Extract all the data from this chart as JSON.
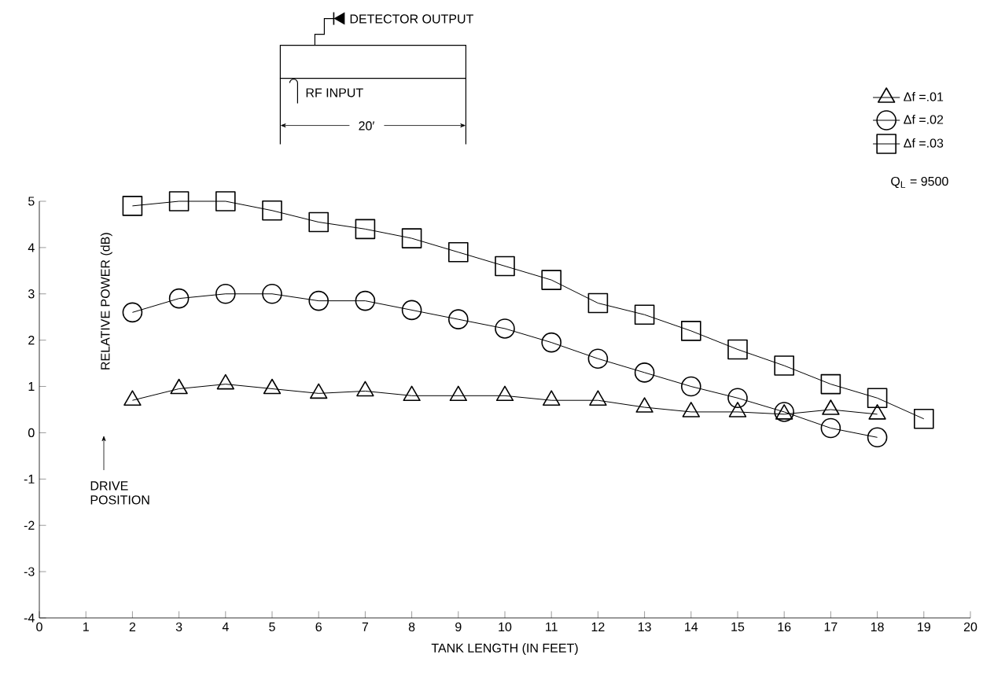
{
  "chart_data": {
    "type": "line",
    "xlabel": "TANK LENGTH  (IN FEET)",
    "ylabel": "RELATIVE POWER (dB)",
    "xlim": [
      0,
      20
    ],
    "ylim": [
      -4,
      5
    ],
    "xticks": [
      0,
      1,
      2,
      3,
      4,
      5,
      6,
      7,
      8,
      9,
      10,
      11,
      12,
      13,
      14,
      15,
      16,
      17,
      18,
      19,
      20
    ],
    "yticks": [
      -4,
      -3,
      -2,
      -1,
      0,
      1,
      2,
      3,
      4,
      5
    ],
    "x": [
      2,
      3,
      4,
      5,
      6,
      7,
      8,
      9,
      10,
      11,
      12,
      13,
      14,
      15,
      16,
      17,
      18
    ],
    "legend": "top right",
    "grid": false,
    "line_style": "solid",
    "series": [
      {
        "name": "Δf =.01",
        "color": "#000000",
        "marker": "triangle",
        "values": [
          0.7,
          0.95,
          1.05,
          0.95,
          0.85,
          0.9,
          0.8,
          0.8,
          0.8,
          0.7,
          0.7,
          0.55,
          0.45,
          0.45,
          0.4,
          0.5,
          0.4
        ]
      },
      {
        "name": "Δf =.02",
        "color": "#000000",
        "marker": "circle",
        "values": [
          2.6,
          2.9,
          3.0,
          3.0,
          2.85,
          2.85,
          2.65,
          2.45,
          2.25,
          1.95,
          1.6,
          1.3,
          1.0,
          0.75,
          0.45,
          0.1,
          -0.1
        ]
      },
      {
        "name": "Δf =.03",
        "color": "#000000",
        "marker": "square",
        "x": [
          2,
          3,
          4,
          5,
          6,
          7,
          8,
          9,
          10,
          11,
          12,
          13,
          14,
          15,
          16,
          17,
          18,
          19
        ],
        "values": [
          4.9,
          5.0,
          5.0,
          4.8,
          4.55,
          4.4,
          4.2,
          3.9,
          3.6,
          3.3,
          2.8,
          2.55,
          2.2,
          1.8,
          1.45,
          1.05,
          0.75,
          0.3
        ]
      }
    ],
    "annotations": [
      "Q$_{L}$ = 9500",
      "DETECTOR OUTPUT",
      "RF INPUT",
      "20′",
      "DRIVE POSITION"
    ]
  }
}
